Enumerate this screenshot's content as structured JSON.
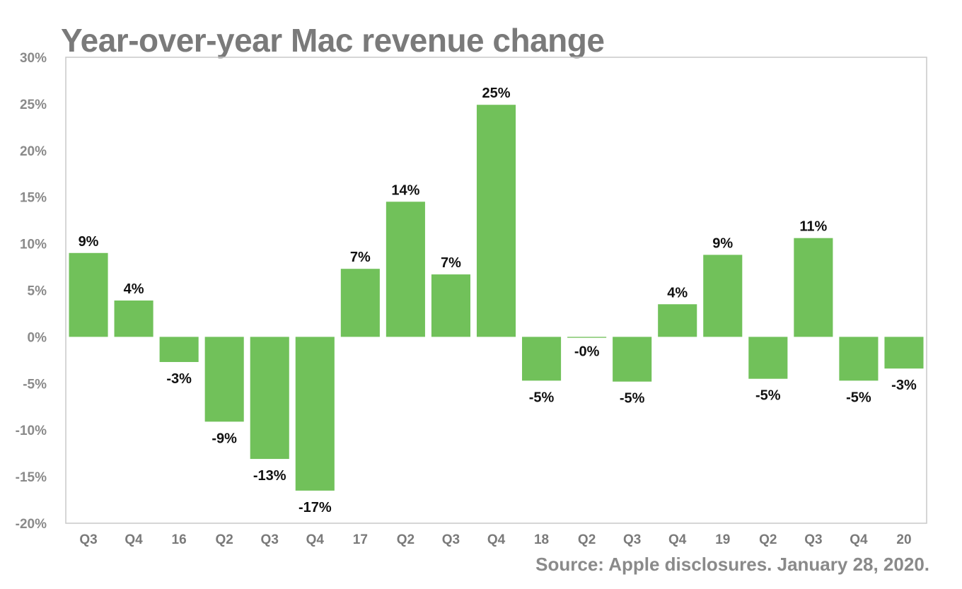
{
  "chart_data": {
    "type": "bar",
    "title": "Year-over-year Mac revenue change",
    "source": "Source: Apple disclosures. January 28, 2020.",
    "categories": [
      "Q3",
      "Q4",
      "16",
      "Q2",
      "Q3",
      "Q4",
      "17",
      "Q2",
      "Q3",
      "Q4",
      "18",
      "Q2",
      "Q3",
      "Q4",
      "19",
      "Q2",
      "Q3",
      "Q4",
      "20"
    ],
    "values": [
      9,
      3.9,
      -2.7,
      -9.1,
      -13.1,
      -16.5,
      7.3,
      14.5,
      6.7,
      24.9,
      -4.7,
      -0.1,
      -4.8,
      3.5,
      8.8,
      -4.5,
      10.6,
      -4.7,
      -3.4
    ],
    "data_labels": [
      "9%",
      "4%",
      "-3%",
      "-9%",
      "-13%",
      "-17%",
      "7%",
      "14%",
      "7%",
      "25%",
      "-5%",
      "-0%",
      "-5%",
      "4%",
      "9%",
      "-5%",
      "11%",
      "-5%",
      "-3%"
    ],
    "ylim": [
      -20,
      30
    ],
    "yticks": [
      30,
      25,
      20,
      15,
      10,
      5,
      0,
      -5,
      -10,
      -15,
      -20
    ],
    "ytick_labels": [
      "30%",
      "25%",
      "20%",
      "15%",
      "10%",
      "5%",
      "0%",
      "-5%",
      "-10%",
      "-15%",
      "-20%"
    ],
    "xlabel": "",
    "ylabel": "",
    "grid": false,
    "legend": "none",
    "colors": {
      "bar": "#71c15a",
      "frame": "#c8c8c8",
      "title": "#7a7a7a"
    }
  }
}
